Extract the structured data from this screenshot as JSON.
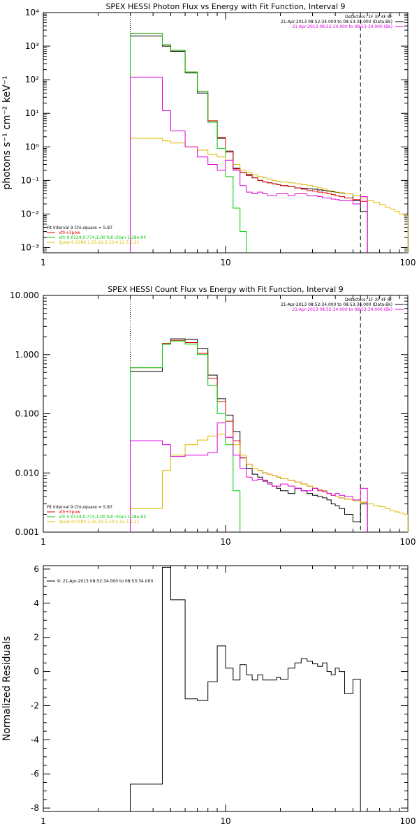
{
  "chart_data": [
    {
      "type": "line",
      "title": "SPEX HESSI Photon Flux vs Energy with Fit Function, Interval 9",
      "xscale": "log",
      "yscale": "log",
      "xlim": [
        1,
        100
      ],
      "ylim": [
        0.0007,
        10000
      ],
      "ylabel": "photons s⁻¹ cm⁻² keV⁻¹",
      "x_ticks": [
        {
          "v": 1,
          "label": "1"
        },
        {
          "v": 10,
          "label": "10"
        },
        {
          "v": 100,
          "label": "100"
        }
      ],
      "y_ticks": [
        {
          "v": 0.001,
          "label": "10⁻³"
        },
        {
          "v": 0.01,
          "label": "10⁻²"
        },
        {
          "v": 0.1,
          "label": "10⁻¹"
        },
        {
          "v": 1,
          "label": "10⁰"
        },
        {
          "v": 10,
          "label": "10¹"
        },
        {
          "v": 100,
          "label": "10²"
        },
        {
          "v": 1000,
          "label": "10³"
        },
        {
          "v": 10000,
          "label": "10⁴"
        }
      ],
      "vlines": [
        {
          "x": 3,
          "style": "dotted"
        },
        {
          "x": 55,
          "style": "dashed"
        }
      ],
      "annotation_top_right": [
        {
          "text": "Detectors: 1F 3F 4F 8F",
          "color": "#000000"
        },
        {
          "text": "21-Apr-2013 08:52:34.000 to 08:53:34.000 (Data-Bk)",
          "color": "#000000"
        },
        {
          "text": "21-Apr-2013 08:52:34.000 to 08:53:34.000 (Bk)",
          "color": "#dd00dd"
        }
      ],
      "annotation_bottom_left": [
        {
          "text": "Fit Interval 9   Chi-square = 5.87",
          "color": "#000000"
        },
        {
          "text": "vth+3pow",
          "color": "#dd0000"
        },
        {
          "text": "vth 0.0134,0.774,1.00  full chian 1.28e-04",
          "color": "#00cc00"
        },
        {
          "text": "3pow 0.0384,1.50,10.5,10.4,11.7,1.21",
          "color": "#ddbb00"
        }
      ],
      "edges": [
        3,
        3.5,
        4,
        4.5,
        5,
        6,
        7,
        8,
        9,
        10,
        11,
        12,
        13,
        14,
        15,
        16,
        17,
        18,
        19,
        20,
        22,
        24,
        26,
        28,
        30,
        32,
        34,
        36,
        38,
        40,
        42,
        45,
        50,
        55,
        60,
        65,
        70,
        75,
        80,
        85,
        90,
        95,
        100
      ],
      "series": [
        {
          "name": "Data-Bk",
          "color": "#000000",
          "values": [
            2000,
            2000,
            2000,
            1000,
            700,
            160,
            40,
            5.5,
            1.8,
            0.75,
            0.23,
            0.17,
            0.15,
            0.12,
            0.1,
            0.09,
            0.085,
            0.08,
            0.075,
            0.07,
            0.065,
            0.06,
            0.058,
            0.056,
            0.055,
            0.052,
            0.05,
            0.048,
            0.046,
            0.044,
            0.042,
            0.04,
            0.025,
            0.012,
            null,
            null,
            null,
            null,
            null,
            null,
            null,
            null
          ]
        },
        {
          "name": "vth+3pow",
          "color": "#dd0000",
          "values": [
            2400,
            2400,
            2400,
            1100,
            750,
            170,
            45,
            6,
            1.9,
            0.7,
            0.22,
            0.17,
            0.14,
            0.12,
            0.1,
            0.09,
            0.085,
            0.08,
            0.075,
            0.07,
            0.065,
            0.06,
            0.055,
            0.05,
            0.048,
            0.045,
            0.043,
            0.04,
            0.038,
            0.035,
            0.033,
            0.03,
            0.027,
            0.024,
            null,
            null,
            null,
            null,
            null,
            null,
            null,
            null
          ]
        },
        {
          "name": "vth",
          "color": "#00cc00",
          "values": [
            2400,
            2400,
            2400,
            1100,
            750,
            170,
            45,
            5.5,
            0.9,
            0.13,
            0.015,
            0.003,
            0.0005,
            null,
            null,
            null,
            null,
            null,
            null,
            null,
            null,
            null,
            null,
            null,
            null,
            null,
            null,
            null,
            null,
            null,
            null,
            null,
            null,
            null,
            null,
            null,
            null,
            null,
            null,
            null,
            null,
            null
          ]
        },
        {
          "name": "3pow",
          "color": "#ddbb00",
          "values": [
            1.8,
            1.8,
            1.8,
            1.5,
            1.3,
            1.0,
            0.8,
            0.6,
            0.5,
            0.4,
            0.3,
            0.2,
            0.17,
            0.15,
            0.13,
            0.12,
            0.11,
            0.1,
            0.095,
            0.09,
            0.085,
            0.08,
            0.075,
            0.07,
            0.065,
            0.06,
            0.055,
            0.05,
            0.048,
            0.045,
            0.043,
            0.04,
            0.035,
            0.03,
            0.025,
            0.022,
            0.019,
            0.016,
            0.014,
            0.012,
            0.01,
            0.009
          ]
        },
        {
          "name": "Bk",
          "color": "#dd00dd",
          "values": [
            120,
            120,
            120,
            12,
            3,
            1.0,
            0.5,
            0.3,
            0.2,
            0.4,
            0.2,
            0.07,
            0.045,
            0.04,
            0.045,
            0.04,
            0.035,
            0.035,
            0.04,
            0.04,
            0.035,
            0.04,
            0.04,
            0.035,
            0.035,
            0.033,
            0.03,
            0.03,
            0.028,
            0.027,
            0.025,
            0.025,
            0.02,
            0.033,
            null,
            null,
            null,
            null,
            null,
            null,
            null,
            null
          ]
        }
      ]
    },
    {
      "type": "line",
      "title": "SPEX HESSI Count Flux vs Energy with Fit Function, Interval 9",
      "xscale": "log",
      "yscale": "log",
      "xlim": [
        1,
        100
      ],
      "ylim": [
        0.001,
        10
      ],
      "ylabel": "",
      "x_ticks": [
        {
          "v": 1,
          "label": "1"
        },
        {
          "v": 10,
          "label": "10"
        },
        {
          "v": 100,
          "label": "100"
        }
      ],
      "y_ticks": [
        {
          "v": 0.001,
          "label": "0.001"
        },
        {
          "v": 0.01,
          "label": "0.010"
        },
        {
          "v": 0.1,
          "label": "0.100"
        },
        {
          "v": 1,
          "label": "1.000"
        },
        {
          "v": 10,
          "label": "10.000"
        }
      ],
      "vlines": [
        {
          "x": 3,
          "style": "dotted"
        },
        {
          "x": 55,
          "style": "dashed"
        }
      ],
      "annotation_top_right": [
        {
          "text": "Detectors: 1F 3F 4F 8F",
          "color": "#000000"
        },
        {
          "text": "21-Apr-2013 08:52:34.000 to 08:53:34.000 (Data-Bk)",
          "color": "#000000"
        },
        {
          "text": "21-Apr-2013 08:52:34.000 to 08:53:34.000 (Bk)",
          "color": "#dd00dd"
        }
      ],
      "annotation_bottom_left": [
        {
          "text": "Fit Interval 9   Chi-square = 5.87",
          "color": "#000000"
        },
        {
          "text": "vth+3pow",
          "color": "#dd0000"
        },
        {
          "text": "vth 0.0134,0.774,1.00  full chian 1.28e-04",
          "color": "#00cc00"
        },
        {
          "text": "3pow 0.0384,1.50,10.5,10.4,11.7,1.21",
          "color": "#ddbb00"
        }
      ],
      "edges": [
        3,
        3.5,
        4,
        4.5,
        5,
        6,
        7,
        8,
        9,
        10,
        11,
        12,
        13,
        14,
        15,
        16,
        17,
        18,
        19,
        20,
        22,
        24,
        26,
        28,
        30,
        32,
        34,
        36,
        38,
        40,
        42,
        45,
        50,
        55,
        60,
        65,
        70,
        75,
        80,
        85,
        90,
        95,
        100
      ],
      "series": [
        {
          "name": "Data-Bk",
          "color": "#000000",
          "values": [
            0.52,
            0.52,
            0.52,
            1.5,
            1.85,
            1.8,
            1.25,
            0.45,
            0.18,
            0.095,
            0.05,
            0.018,
            0.012,
            0.0095,
            0.0085,
            0.0075,
            0.0068,
            0.006,
            0.0055,
            0.005,
            0.0045,
            0.0055,
            0.005,
            0.0045,
            0.0042,
            0.004,
            0.0038,
            0.0035,
            0.003,
            0.0028,
            0.0025,
            0.002,
            0.0015,
            0.003,
            null,
            null,
            null,
            null,
            null,
            null,
            null,
            null
          ]
        },
        {
          "name": "vth+3pow",
          "color": "#dd0000",
          "values": [
            0.6,
            0.6,
            0.6,
            1.55,
            1.75,
            1.6,
            1.05,
            0.4,
            0.16,
            0.075,
            0.035,
            0.018,
            0.014,
            0.012,
            0.011,
            0.01,
            0.0095,
            0.009,
            0.0085,
            0.008,
            0.0075,
            0.007,
            0.0065,
            0.006,
            0.0055,
            0.0052,
            0.005,
            0.0045,
            0.0042,
            0.004,
            0.0038,
            0.0036,
            0.0034,
            0.0032,
            null,
            null,
            null,
            null,
            null,
            null,
            null,
            null
          ]
        },
        {
          "name": "vth",
          "color": "#00cc00",
          "values": [
            0.6,
            0.6,
            0.6,
            1.5,
            1.7,
            1.5,
            1.0,
            0.3,
            0.1,
            0.03,
            0.005,
            0.0003,
            null,
            null,
            null,
            null,
            null,
            null,
            null,
            null,
            null,
            null,
            null,
            null,
            null,
            null,
            null,
            null,
            null,
            null,
            null,
            null,
            null,
            null,
            null,
            null,
            null,
            null,
            null,
            null,
            null,
            null
          ]
        },
        {
          "name": "3pow",
          "color": "#ddbb00",
          "values": [
            0.0025,
            0.0025,
            0.0025,
            0.011,
            0.02,
            0.03,
            0.036,
            0.042,
            0.045,
            0.04,
            0.03,
            0.02,
            0.014,
            0.012,
            0.011,
            0.01,
            0.0095,
            0.009,
            0.0085,
            0.008,
            0.0075,
            0.007,
            0.0065,
            0.006,
            0.0055,
            0.0052,
            0.005,
            0.0045,
            0.0042,
            0.004,
            0.0038,
            0.0036,
            0.0034,
            0.0032,
            0.003,
            0.0028,
            0.0027,
            0.0025,
            0.0023,
            0.0022,
            0.0021,
            0.002
          ]
        },
        {
          "name": "Bk",
          "color": "#dd00dd",
          "values": [
            0.035,
            0.035,
            0.035,
            0.03,
            0.019,
            0.02,
            0.02,
            0.022,
            0.07,
            0.04,
            0.02,
            0.012,
            0.0085,
            0.0075,
            0.0078,
            0.0072,
            0.0065,
            0.006,
            0.006,
            0.0065,
            0.006,
            0.0055,
            0.005,
            0.005,
            0.0055,
            0.005,
            0.0048,
            0.0045,
            0.0042,
            0.0045,
            0.0042,
            0.004,
            0.0035,
            0.0055,
            null,
            null,
            null,
            null,
            null,
            null,
            null,
            null
          ]
        }
      ]
    },
    {
      "type": "line",
      "title": "",
      "xscale": "log",
      "yscale": "linear",
      "xlim": [
        1,
        100
      ],
      "ylim": [
        -8.2,
        6.2
      ],
      "ylabel": "Normalized Residuals",
      "x_ticks": [
        {
          "v": 1,
          "label": "1"
        },
        {
          "v": 10,
          "label": "10"
        },
        {
          "v": 100,
          "label": "100"
        }
      ],
      "y_ticks": [
        {
          "v": -8,
          "label": "-8"
        },
        {
          "v": -6,
          "label": "-6"
        },
        {
          "v": -4,
          "label": "-4"
        },
        {
          "v": -2,
          "label": "-2"
        },
        {
          "v": 0,
          "label": "0"
        },
        {
          "v": 2,
          "label": "2"
        },
        {
          "v": 4,
          "label": "4"
        },
        {
          "v": 6,
          "label": "6"
        }
      ],
      "vlines": [],
      "legend_label": "9: 21-Apr-2013 08:52:34.000 to 08:53:34.000",
      "edges": [
        3,
        3.5,
        4,
        4.5,
        5,
        6,
        7,
        8,
        9,
        10,
        11,
        12,
        13,
        14,
        15,
        16,
        17,
        18,
        19,
        20,
        22,
        24,
        26,
        28,
        30,
        32,
        34,
        36,
        38,
        40,
        42,
        45,
        50,
        55
      ],
      "series": [
        {
          "name": "9: 21-Apr-2013 08:52:34.000 to 08:53:34.000",
          "color": "#000000",
          "values": [
            -6.6,
            -6.6,
            -6.6,
            6.1,
            4.2,
            -1.6,
            -1.7,
            -0.6,
            1.5,
            0.2,
            -0.5,
            0.4,
            -0.2,
            -0.5,
            -0.2,
            -0.5,
            -0.5,
            -0.5,
            -0.35,
            -0.45,
            0.2,
            0.5,
            0.75,
            0.6,
            0.45,
            0.3,
            0.5,
            0.0,
            -0.2,
            0.2,
            0.0,
            -1.3,
            -0.45
          ]
        }
      ]
    }
  ]
}
